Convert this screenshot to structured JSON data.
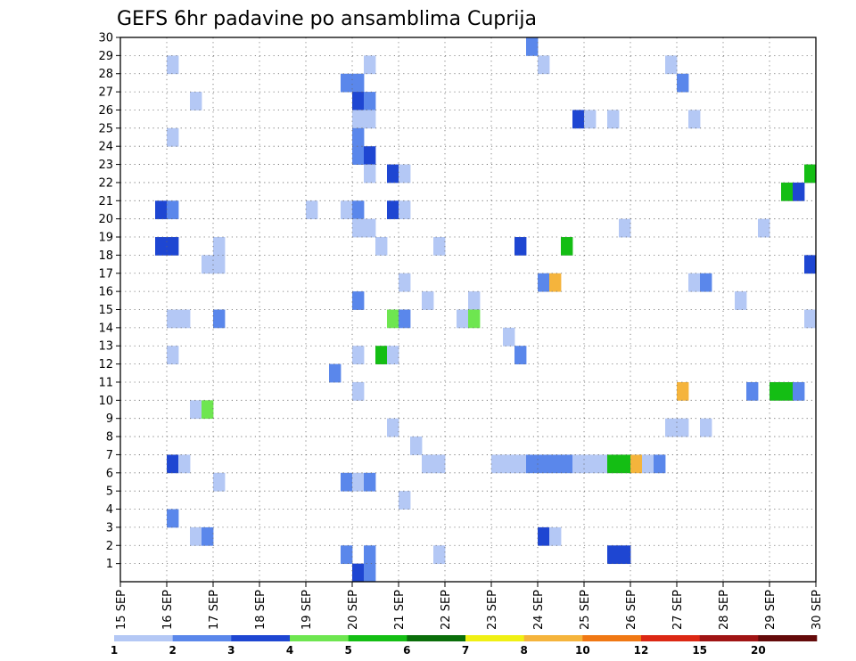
{
  "chart_data": {
    "type": "heatmap",
    "title": "GEFS 6hr padavine po ansamblima Cuprija",
    "xlabel": "",
    "ylabel": "",
    "x_tick_labels": [
      "15 SEP",
      "16 SEP",
      "17 SEP",
      "18 SEP",
      "19 SEP",
      "20 SEP",
      "21 SEP",
      "22 SEP",
      "23 SEP",
      "24 SEP",
      "25 SEP",
      "26 SEP",
      "27 SEP",
      "28 SEP",
      "29 SEP",
      "30 SEP"
    ],
    "y_tick_labels": [
      "1",
      "2",
      "3",
      "4",
      "5",
      "6",
      "7",
      "8",
      "9",
      "10",
      "11",
      "12",
      "13",
      "14",
      "15",
      "16",
      "17",
      "18",
      "19",
      "20",
      "21",
      "22",
      "23",
      "24",
      "25",
      "26",
      "27",
      "28",
      "29",
      "30"
    ],
    "x_range_days": [
      15,
      30
    ],
    "y_range_members": [
      1,
      30
    ],
    "time_step_hours": 6,
    "grid": true,
    "colorbar_labels": [
      "1",
      "2",
      "3",
      "4",
      "5",
      "6",
      "7",
      "8",
      "10",
      "12",
      "15",
      "20"
    ],
    "colorbar_colors": [
      "#b4c8f5",
      "#5a87eb",
      "#1e46d2",
      "#6ee650",
      "#14be14",
      "#0a6e0a",
      "#f0f014",
      "#f5b43c",
      "#f07814",
      "#dc2814",
      "#a01414",
      "#640a0a"
    ],
    "cells": [
      {
        "m": 30,
        "t": "2023-09-23 18",
        "v": 2.5
      },
      {
        "m": 29,
        "t": "2023-09-16 00",
        "v": 1.5
      },
      {
        "m": 29,
        "t": "2023-09-20 06",
        "v": 1.5
      },
      {
        "m": 29,
        "t": "2023-09-24 00",
        "v": 1.5
      },
      {
        "m": 29,
        "t": "2023-09-26 18",
        "v": 1.5
      },
      {
        "m": 28,
        "t": "2023-09-19 18",
        "v": 2.5
      },
      {
        "m": 28,
        "t": "2023-09-20 00",
        "v": 2.5
      },
      {
        "m": 28,
        "t": "2023-09-27 00",
        "v": 2.5
      },
      {
        "m": 27,
        "t": "2023-09-16 12",
        "v": 1.5
      },
      {
        "m": 27,
        "t": "2023-09-20 00",
        "v": 3.5
      },
      {
        "m": 27,
        "t": "2023-09-20 06",
        "v": 2.5
      },
      {
        "m": 26,
        "t": "2023-09-20 00",
        "v": 1.5
      },
      {
        "m": 26,
        "t": "2023-09-20 06",
        "v": 1.5
      },
      {
        "m": 26,
        "t": "2023-09-24 18",
        "v": 3.5
      },
      {
        "m": 26,
        "t": "2023-09-25 00",
        "v": 1.5
      },
      {
        "m": 26,
        "t": "2023-09-25 12",
        "v": 1.5
      },
      {
        "m": 26,
        "t": "2023-09-27 06",
        "v": 1.5
      },
      {
        "m": 25,
        "t": "2023-09-16 00",
        "v": 1.5
      },
      {
        "m": 25,
        "t": "2023-09-20 00",
        "v": 2.5
      },
      {
        "m": 24,
        "t": "2023-09-20 00",
        "v": 2.5
      },
      {
        "m": 24,
        "t": "2023-09-20 06",
        "v": 3.5
      },
      {
        "m": 23,
        "t": "2023-09-20 06",
        "v": 1.5
      },
      {
        "m": 23,
        "t": "2023-09-20 18",
        "v": 3.5
      },
      {
        "m": 23,
        "t": "2023-09-21 00",
        "v": 1.5
      },
      {
        "m": 23,
        "t": "2023-09-29 18",
        "v": 5.5
      },
      {
        "m": 22,
        "t": "2023-09-29 06",
        "v": 5.5
      },
      {
        "m": 22,
        "t": "2023-09-29 12",
        "v": 3.5
      },
      {
        "m": 21,
        "t": "2023-09-15 18",
        "v": 3.5
      },
      {
        "m": 21,
        "t": "2023-09-16 00",
        "v": 2.5
      },
      {
        "m": 21,
        "t": "2023-09-19 00",
        "v": 1.5
      },
      {
        "m": 21,
        "t": "2023-09-19 18",
        "v": 1.5
      },
      {
        "m": 21,
        "t": "2023-09-20 00",
        "v": 2.5
      },
      {
        "m": 21,
        "t": "2023-09-20 18",
        "v": 3.5
      },
      {
        "m": 21,
        "t": "2023-09-21 00",
        "v": 1.5
      },
      {
        "m": 20,
        "t": "2023-09-20 00",
        "v": 1.5
      },
      {
        "m": 20,
        "t": "2023-09-20 06",
        "v": 1.5
      },
      {
        "m": 20,
        "t": "2023-09-25 18",
        "v": 1.5
      },
      {
        "m": 20,
        "t": "2023-09-28 18",
        "v": 1.5
      },
      {
        "m": 19,
        "t": "2023-09-15 18",
        "v": 3.5
      },
      {
        "m": 19,
        "t": "2023-09-16 00",
        "v": 3.5
      },
      {
        "m": 19,
        "t": "2023-09-17 00",
        "v": 1.5
      },
      {
        "m": 19,
        "t": "2023-09-20 12",
        "v": 1.5
      },
      {
        "m": 19,
        "t": "2023-09-21 18",
        "v": 1.5
      },
      {
        "m": 19,
        "t": "2023-09-23 12",
        "v": 3.5
      },
      {
        "m": 19,
        "t": "2023-09-24 12",
        "v": 5.5
      },
      {
        "m": 18,
        "t": "2023-09-16 18",
        "v": 1.5
      },
      {
        "m": 18,
        "t": "2023-09-17 00",
        "v": 1.5
      },
      {
        "m": 18,
        "t": "2023-09-29 18",
        "v": 3.5
      },
      {
        "m": 17,
        "t": "2023-09-21 00",
        "v": 1.5
      },
      {
        "m": 17,
        "t": "2023-09-24 00",
        "v": 2.5
      },
      {
        "m": 17,
        "t": "2023-09-24 06",
        "v": 8.5
      },
      {
        "m": 17,
        "t": "2023-09-27 06",
        "v": 1.5
      },
      {
        "m": 17,
        "t": "2023-09-27 12",
        "v": 2.5
      },
      {
        "m": 16,
        "t": "2023-09-20 00",
        "v": 2.5
      },
      {
        "m": 16,
        "t": "2023-09-21 12",
        "v": 1.5
      },
      {
        "m": 16,
        "t": "2023-09-22 12",
        "v": 1.5
      },
      {
        "m": 16,
        "t": "2023-09-28 06",
        "v": 1.5
      },
      {
        "m": 15,
        "t": "2023-09-16 00",
        "v": 1.5
      },
      {
        "m": 15,
        "t": "2023-09-16 06",
        "v": 1.5
      },
      {
        "m": 15,
        "t": "2023-09-17 00",
        "v": 2.5
      },
      {
        "m": 15,
        "t": "2023-09-20 18",
        "v": 4.5
      },
      {
        "m": 15,
        "t": "2023-09-21 00",
        "v": 2.5
      },
      {
        "m": 15,
        "t": "2023-09-22 06",
        "v": 1.5
      },
      {
        "m": 15,
        "t": "2023-09-22 12",
        "v": 4.5
      },
      {
        "m": 15,
        "t": "2023-09-29 18",
        "v": 1.5
      },
      {
        "m": 14,
        "t": "2023-09-23 06",
        "v": 1.5
      },
      {
        "m": 13,
        "t": "2023-09-16 00",
        "v": 1.5
      },
      {
        "m": 13,
        "t": "2023-09-20 00",
        "v": 1.5
      },
      {
        "m": 13,
        "t": "2023-09-20 12",
        "v": 5.5
      },
      {
        "m": 13,
        "t": "2023-09-20 18",
        "v": 1.5
      },
      {
        "m": 13,
        "t": "2023-09-23 12",
        "v": 2.5
      },
      {
        "m": 12,
        "t": "2023-09-19 12",
        "v": 2.5
      },
      {
        "m": 11,
        "t": "2023-09-20 00",
        "v": 1.5
      },
      {
        "m": 11,
        "t": "2023-09-27 00",
        "v": 9.5
      },
      {
        "m": 11,
        "t": "2023-09-28 12",
        "v": 2.5
      },
      {
        "m": 11,
        "t": "2023-09-29 00",
        "v": 5.5
      },
      {
        "m": 11,
        "t": "2023-09-29 06",
        "v": 5.5
      },
      {
        "m": 11,
        "t": "2023-09-29 12",
        "v": 2.5
      },
      {
        "m": 10,
        "t": "2023-09-16 12",
        "v": 1.5
      },
      {
        "m": 10,
        "t": "2023-09-16 18",
        "v": 4.5
      },
      {
        "m": 9,
        "t": "2023-09-20 18",
        "v": 1.5
      },
      {
        "m": 9,
        "t": "2023-09-26 18",
        "v": 1.5
      },
      {
        "m": 9,
        "t": "2023-09-27 00",
        "v": 1.5
      },
      {
        "m": 9,
        "t": "2023-09-27 12",
        "v": 1.5
      },
      {
        "m": 8,
        "t": "2023-09-21 06",
        "v": 1.5
      },
      {
        "m": 7,
        "t": "2023-09-16 00",
        "v": 3.5
      },
      {
        "m": 7,
        "t": "2023-09-16 06",
        "v": 1.5
      },
      {
        "m": 7,
        "t": "2023-09-21 12",
        "v": 1.5
      },
      {
        "m": 7,
        "t": "2023-09-21 18",
        "v": 1.5
      },
      {
        "m": 7,
        "t": "2023-09-23 00",
        "v": 1.5
      },
      {
        "m": 7,
        "t": "2023-09-23 06",
        "v": 1.5
      },
      {
        "m": 7,
        "t": "2023-09-23 12",
        "v": 1.5
      },
      {
        "m": 7,
        "t": "2023-09-23 18",
        "v": 2.5
      },
      {
        "m": 7,
        "t": "2023-09-24 00",
        "v": 2.5
      },
      {
        "m": 7,
        "t": "2023-09-24 06",
        "v": 2.5
      },
      {
        "m": 7,
        "t": "2023-09-24 12",
        "v": 2.5
      },
      {
        "m": 7,
        "t": "2023-09-24 18",
        "v": 1.5
      },
      {
        "m": 7,
        "t": "2023-09-25 00",
        "v": 1.5
      },
      {
        "m": 7,
        "t": "2023-09-25 06",
        "v": 1.5
      },
      {
        "m": 7,
        "t": "2023-09-25 12",
        "v": 5.5
      },
      {
        "m": 7,
        "t": "2023-09-25 18",
        "v": 5.5
      },
      {
        "m": 7,
        "t": "2023-09-26 00",
        "v": 9.5
      },
      {
        "m": 7,
        "t": "2023-09-26 06",
        "v": 1.5
      },
      {
        "m": 7,
        "t": "2023-09-26 12",
        "v": 2.5
      },
      {
        "m": 6,
        "t": "2023-09-17 00",
        "v": 1.5
      },
      {
        "m": 6,
        "t": "2023-09-19 18",
        "v": 2.5
      },
      {
        "m": 6,
        "t": "2023-09-20 00",
        "v": 1.5
      },
      {
        "m": 6,
        "t": "2023-09-20 06",
        "v": 2.5
      },
      {
        "m": 5,
        "t": "2023-09-21 00",
        "v": 1.5
      },
      {
        "m": 4,
        "t": "2023-09-16 00",
        "v": 2.5
      },
      {
        "m": 3,
        "t": "2023-09-16 12",
        "v": 1.5
      },
      {
        "m": 3,
        "t": "2023-09-16 18",
        "v": 2.5
      },
      {
        "m": 3,
        "t": "2023-09-24 00",
        "v": 3.5
      },
      {
        "m": 3,
        "t": "2023-09-24 06",
        "v": 1.5
      },
      {
        "m": 2,
        "t": "2023-09-19 18",
        "v": 2.5
      },
      {
        "m": 2,
        "t": "2023-09-20 06",
        "v": 2.5
      },
      {
        "m": 2,
        "t": "2023-09-21 18",
        "v": 1.5
      },
      {
        "m": 2,
        "t": "2023-09-25 12",
        "v": 3.5
      },
      {
        "m": 2,
        "t": "2023-09-25 18",
        "v": 3.5
      },
      {
        "m": 1,
        "t": "2023-09-20 00",
        "v": 3.5
      },
      {
        "m": 1,
        "t": "2023-09-20 06",
        "v": 2.5
      }
    ]
  }
}
